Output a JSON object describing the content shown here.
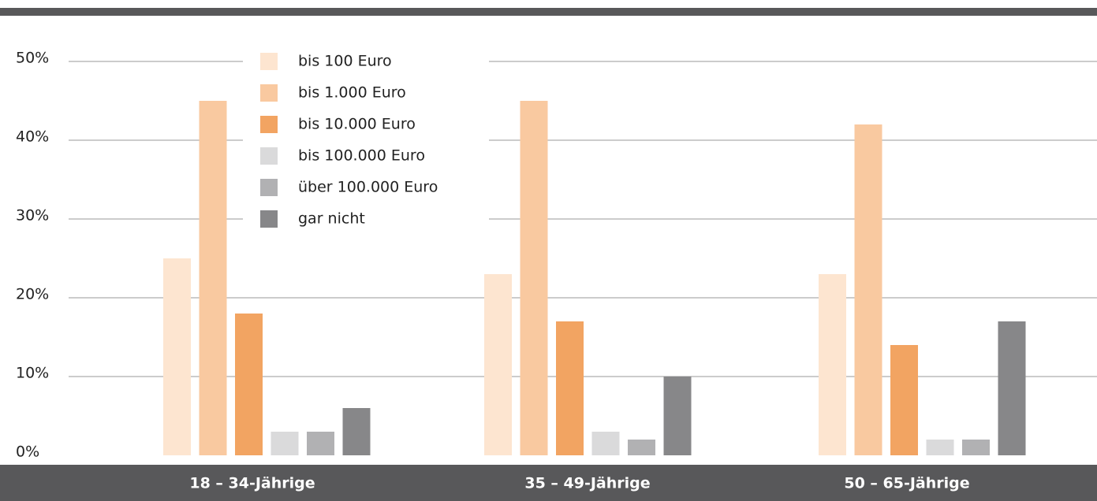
{
  "chart_data": {
    "type": "bar",
    "categories": [
      "18 – 34-Jährige",
      "35 – 49-Jährige",
      "50 – 65-Jährige"
    ],
    "series": [
      {
        "name": "bis 100 Euro",
        "color": "#fde5d0",
        "values": [
          25,
          23,
          23
        ]
      },
      {
        "name": "bis 1.000 Euro",
        "color": "#f9c9a0",
        "values": [
          45,
          45,
          42
        ]
      },
      {
        "name": "bis 10.000 Euro",
        "color": "#f2a462",
        "values": [
          18,
          17,
          14
        ]
      },
      {
        "name": "bis 100.000 Euro",
        "color": "#dadadb",
        "values": [
          3,
          3,
          2
        ]
      },
      {
        "name": "über 100.000 Euro",
        "color": "#b1b1b3",
        "values": [
          3,
          2,
          2
        ]
      },
      {
        "name": "gar nicht",
        "color": "#878789",
        "values": [
          6,
          10,
          17
        ]
      }
    ],
    "ylim": [
      0,
      50
    ],
    "yticks": [
      {
        "value": 0,
        "label": "0%"
      },
      {
        "value": 10,
        "label": "10%"
      },
      {
        "value": 20,
        "label": "20%"
      },
      {
        "value": 30,
        "label": "30%"
      },
      {
        "value": 40,
        "label": "40%"
      },
      {
        "value": 50,
        "label": "50%"
      }
    ],
    "grid": true
  }
}
